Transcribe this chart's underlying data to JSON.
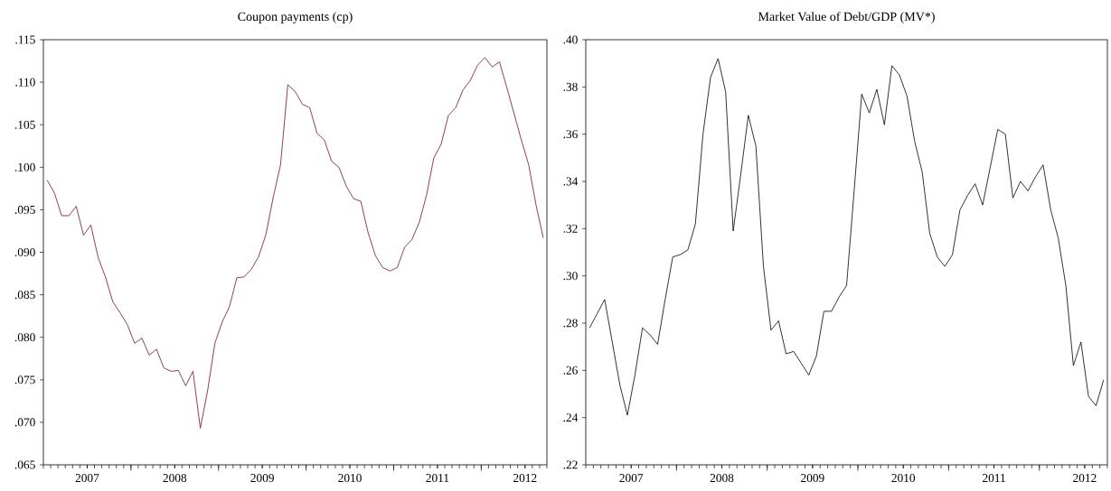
{
  "chart_data": [
    {
      "type": "line",
      "title": "Coupon payments (cp)",
      "color": "#7a1018",
      "x": [
        "2007-01",
        "2007-02",
        "2007-03",
        "2007-04",
        "2007-05",
        "2007-06",
        "2007-07",
        "2007-08",
        "2007-09",
        "2007-10",
        "2007-11",
        "2007-12",
        "2008-01",
        "2008-02",
        "2008-03",
        "2008-04",
        "2008-05",
        "2008-06",
        "2008-07",
        "2008-08",
        "2008-09",
        "2008-10",
        "2008-11",
        "2008-12",
        "2009-01",
        "2009-02",
        "2009-03",
        "2009-04",
        "2009-05",
        "2009-06",
        "2009-07",
        "2009-08",
        "2009-09",
        "2009-10",
        "2009-11",
        "2009-12",
        "2010-01",
        "2010-02",
        "2010-03",
        "2010-04",
        "2010-05",
        "2010-06",
        "2010-07",
        "2010-08",
        "2010-09",
        "2010-10",
        "2010-11",
        "2010-12",
        "2011-01",
        "2011-02",
        "2011-03",
        "2011-04",
        "2011-05",
        "2011-06",
        "2011-07",
        "2011-08",
        "2011-09",
        "2011-10",
        "2011-11",
        "2011-12",
        "2012-01",
        "2012-02",
        "2012-03",
        "2012-04",
        "2012-05",
        "2012-06",
        "2012-07",
        "2012-08",
        "2012-09"
      ],
      "values": [
        0.0985,
        0.097,
        0.0943,
        0.0943,
        0.0954,
        0.092,
        0.0932,
        0.0894,
        0.0871,
        0.0842,
        0.0829,
        0.0815,
        0.0793,
        0.0799,
        0.0779,
        0.0786,
        0.0764,
        0.076,
        0.0761,
        0.0743,
        0.076,
        0.0693,
        0.0737,
        0.0793,
        0.0818,
        0.0836,
        0.087,
        0.0871,
        0.088,
        0.0895,
        0.0921,
        0.0965,
        0.1003,
        0.1097,
        0.1089,
        0.1074,
        0.107,
        0.104,
        0.1032,
        0.1007,
        0.1,
        0.0978,
        0.0963,
        0.096,
        0.0923,
        0.0896,
        0.0882,
        0.0878,
        0.0882,
        0.0906,
        0.0915,
        0.0935,
        0.0967,
        0.1011,
        0.1027,
        0.1061,
        0.107,
        0.1091,
        0.1102,
        0.112,
        0.1129,
        0.1118,
        0.1124,
        0.1094,
        0.1063,
        0.1032,
        0.1003,
        0.0956,
        0.0917
      ],
      "xlim": [
        "2006-12-16",
        "2012-09-16"
      ],
      "xticks": [
        {
          "value": "2007-06-16",
          "label": "2007"
        },
        {
          "value": "2008-06-16",
          "label": "2008"
        },
        {
          "value": "2009-06-16",
          "label": "2009"
        },
        {
          "value": "2010-06-16",
          "label": "2010"
        },
        {
          "value": "2011-06-16",
          "label": "2011"
        },
        {
          "value": "2012-06-16",
          "label": "2012"
        },
        {
          "value": "2007-12-16",
          "label": null
        },
        {
          "value": "2008-12-16",
          "label": null
        },
        {
          "value": "2009-12-16",
          "label": null
        },
        {
          "value": "2010-12-16",
          "label": null
        },
        {
          "value": "2011-12-16",
          "label": null
        }
      ],
      "ylim": [
        0.065,
        0.115
      ],
      "yticks": [
        {
          "value": 0.065,
          "label": ".065"
        },
        {
          "value": 0.07,
          "label": ".070"
        },
        {
          "value": 0.075,
          "label": ".075"
        },
        {
          "value": 0.08,
          "label": ".080"
        },
        {
          "value": 0.085,
          "label": ".085"
        },
        {
          "value": 0.09,
          "label": ".090"
        },
        {
          "value": 0.095,
          "label": ".095"
        },
        {
          "value": 0.1,
          "label": ".100"
        },
        {
          "value": 0.105,
          "label": ".105"
        },
        {
          "value": 0.11,
          "label": ".110"
        },
        {
          "value": 0.115,
          "label": ".115"
        }
      ]
    },
    {
      "type": "line",
      "title": "Market Value of Debt/GDP (MV*)",
      "color": "#000000",
      "x": [
        "2007-01",
        "2007-02",
        "2007-03",
        "2007-04",
        "2007-05",
        "2007-06",
        "2007-07",
        "2007-08",
        "2007-09",
        "2007-10",
        "2007-11",
        "2007-12",
        "2008-01",
        "2008-02",
        "2008-03",
        "2008-04",
        "2008-05",
        "2008-06",
        "2008-07",
        "2008-08",
        "2008-09",
        "2008-10",
        "2008-11",
        "2008-12",
        "2009-01",
        "2009-02",
        "2009-03",
        "2009-04",
        "2009-05",
        "2009-06",
        "2009-07",
        "2009-08",
        "2009-09",
        "2009-10",
        "2009-11",
        "2009-12",
        "2010-01",
        "2010-02",
        "2010-03",
        "2010-04",
        "2010-05",
        "2010-06",
        "2010-07",
        "2010-08",
        "2010-09",
        "2010-10",
        "2010-11",
        "2010-12",
        "2011-01",
        "2011-02",
        "2011-03",
        "2011-04",
        "2011-05",
        "2011-06",
        "2011-07",
        "2011-08",
        "2011-09",
        "2011-10",
        "2011-11",
        "2011-12",
        "2012-01",
        "2012-02",
        "2012-03",
        "2012-04",
        "2012-05",
        "2012-06",
        "2012-07",
        "2012-08",
        "2012-09"
      ],
      "values": [
        0.278,
        0.284,
        0.29,
        0.272,
        0.254,
        0.241,
        0.258,
        0.278,
        0.275,
        0.271,
        0.29,
        0.308,
        0.309,
        0.311,
        0.322,
        0.36,
        0.384,
        0.392,
        0.378,
        0.319,
        0.343,
        0.368,
        0.355,
        0.304,
        0.277,
        0.281,
        0.267,
        0.268,
        0.263,
        0.258,
        0.266,
        0.285,
        0.285,
        0.291,
        0.296,
        0.336,
        0.377,
        0.369,
        0.379,
        0.364,
        0.389,
        0.385,
        0.376,
        0.357,
        0.344,
        0.318,
        0.308,
        0.304,
        0.309,
        0.328,
        0.334,
        0.339,
        0.33,
        0.346,
        0.362,
        0.36,
        0.333,
        0.34,
        0.336,
        0.342,
        0.347,
        0.328,
        0.316,
        0.296,
        0.262,
        0.272,
        0.249,
        0.245,
        0.256
      ],
      "xlim": [
        "2006-12-16",
        "2012-09-16"
      ],
      "xticks": [
        {
          "value": "2007-06-16",
          "label": "2007"
        },
        {
          "value": "2008-06-16",
          "label": "2008"
        },
        {
          "value": "2009-06-16",
          "label": "2009"
        },
        {
          "value": "2010-06-16",
          "label": "2010"
        },
        {
          "value": "2011-06-16",
          "label": "2011"
        },
        {
          "value": "2012-06-16",
          "label": "2012"
        },
        {
          "value": "2007-12-16",
          "label": null
        },
        {
          "value": "2008-12-16",
          "label": null
        },
        {
          "value": "2009-12-16",
          "label": null
        },
        {
          "value": "2010-12-16",
          "label": null
        },
        {
          "value": "2011-12-16",
          "label": null
        }
      ],
      "ylim": [
        0.22,
        0.4
      ],
      "yticks": [
        {
          "value": 0.22,
          "label": ".22"
        },
        {
          "value": 0.24,
          "label": ".24"
        },
        {
          "value": 0.26,
          "label": ".26"
        },
        {
          "value": 0.28,
          "label": ".28"
        },
        {
          "value": 0.3,
          "label": ".30"
        },
        {
          "value": 0.32,
          "label": ".32"
        },
        {
          "value": 0.34,
          "label": ".34"
        },
        {
          "value": 0.36,
          "label": ".36"
        },
        {
          "value": 0.38,
          "label": ".38"
        },
        {
          "value": 0.4,
          "label": ".40"
        }
      ]
    }
  ]
}
